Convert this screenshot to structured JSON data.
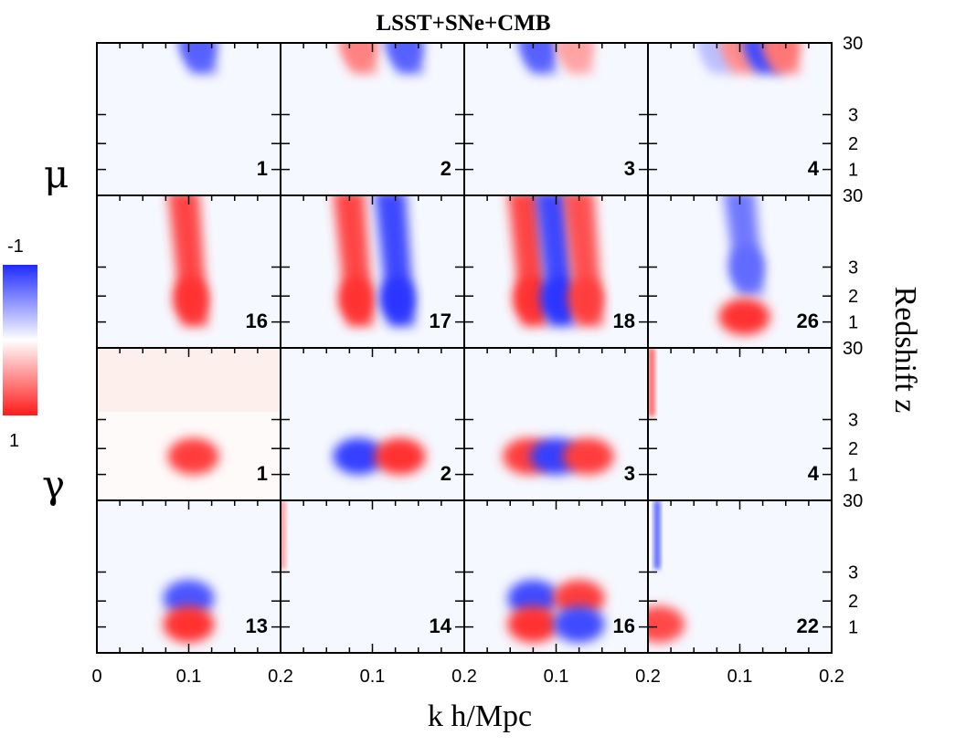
{
  "chart_data": {
    "type": "heatmap",
    "title": "LSST+SNe+CMB",
    "xlabel": "k h/Mpc",
    "ylabel": "Redshift z",
    "row_group_labels": [
      "μ",
      "γ"
    ],
    "x_tick_labels": [
      "0",
      "0.1",
      "0.2",
      "0.1",
      "0.2",
      "0.1",
      "0.2",
      "0.1",
      "0.2"
    ],
    "y_tick_labels": [
      "30",
      "3",
      "2",
      "1"
    ],
    "xlim": [
      0,
      0.2
    ],
    "z_ticks": [
      30,
      3,
      2,
      1
    ],
    "colorbar": {
      "min_label": "-1",
      "max_label": "1",
      "range": [
        -1,
        1
      ],
      "low_color": "#1f2bff",
      "mid_color": "#ffffff",
      "high_color": "#ff1a1a"
    },
    "panels": [
      {
        "group": "mu",
        "mode": "1",
        "blobs": [
          {
            "k": 0.11,
            "z": 30,
            "amp": -0.75,
            "type": "band"
          }
        ]
      },
      {
        "group": "mu",
        "mode": "2",
        "blobs": [
          {
            "k": 0.085,
            "z": 30,
            "amp": 0.55,
            "type": "band"
          },
          {
            "k": 0.135,
            "z": 30,
            "amp": -0.75,
            "type": "band"
          }
        ]
      },
      {
        "group": "mu",
        "mode": "3",
        "blobs": [
          {
            "k": 0.08,
            "z": 30,
            "amp": -0.75,
            "type": "band"
          },
          {
            "k": 0.12,
            "z": 30,
            "amp": 0.4,
            "type": "band"
          }
        ]
      },
      {
        "group": "mu",
        "mode": "4",
        "blobs": [
          {
            "k": 0.075,
            "z": 30,
            "amp": -0.3,
            "type": "band"
          },
          {
            "k": 0.1,
            "z": 30,
            "amp": 0.5,
            "type": "band"
          },
          {
            "k": 0.125,
            "z": 30,
            "amp": -0.85,
            "type": "band"
          },
          {
            "k": 0.145,
            "z": 30,
            "amp": 0.6,
            "type": "band"
          }
        ]
      },
      {
        "group": "mu",
        "mode": "16",
        "blobs": [
          {
            "k": 0.1,
            "z": 1.9,
            "amp": 0.9,
            "type": "band"
          }
        ]
      },
      {
        "group": "mu",
        "mode": "17",
        "blobs": [
          {
            "k": 0.08,
            "z": 1.9,
            "amp": 0.9,
            "type": "band"
          },
          {
            "k": 0.125,
            "z": 1.9,
            "amp": -0.95,
            "type": "band"
          }
        ]
      },
      {
        "group": "mu",
        "mode": "18",
        "blobs": [
          {
            "k": 0.07,
            "z": 1.9,
            "amp": 0.9,
            "type": "band"
          },
          {
            "k": 0.1,
            "z": 1.9,
            "amp": -0.95,
            "type": "band"
          },
          {
            "k": 0.13,
            "z": 1.9,
            "amp": 0.85,
            "type": "band"
          }
        ]
      },
      {
        "group": "mu",
        "mode": "26",
        "blobs": [
          {
            "k": 0.105,
            "z": 3,
            "amp": -0.7,
            "type": "band"
          },
          {
            "k": 0.105,
            "z": 1.2,
            "amp": 0.9,
            "type": "blob"
          }
        ]
      },
      {
        "group": "gamma",
        "mode": "1",
        "blobs": [
          {
            "k": 0.105,
            "z": 1.7,
            "amp": 0.85,
            "type": "blob"
          }
        ]
      },
      {
        "group": "gamma",
        "mode": "2",
        "blobs": [
          {
            "k": 0.085,
            "z": 1.7,
            "amp": -0.9,
            "type": "blob"
          },
          {
            "k": 0.13,
            "z": 1.7,
            "amp": 0.9,
            "type": "blob"
          }
        ]
      },
      {
        "group": "gamma",
        "mode": "3",
        "blobs": [
          {
            "k": 0.07,
            "z": 1.7,
            "amp": 0.85,
            "type": "blob"
          },
          {
            "k": 0.1,
            "z": 1.7,
            "amp": -0.9,
            "type": "blob"
          },
          {
            "k": 0.135,
            "z": 1.7,
            "amp": 0.85,
            "type": "blob"
          }
        ]
      },
      {
        "group": "gamma",
        "mode": "4",
        "blobs": [
          {
            "k": 0.004,
            "z": 30,
            "amp": 0.8,
            "type": "stripe"
          }
        ]
      },
      {
        "group": "gamma",
        "mode": "13",
        "blobs": [
          {
            "k": 0.1,
            "z": 2.1,
            "amp": -0.8,
            "type": "blob"
          },
          {
            "k": 0.1,
            "z": 1.1,
            "amp": 0.9,
            "type": "blob"
          }
        ]
      },
      {
        "group": "gamma",
        "mode": "14",
        "blobs": [
          {
            "k": 0.002,
            "z": 30,
            "amp": 0.5,
            "type": "stripe"
          }
        ]
      },
      {
        "group": "gamma",
        "mode": "16",
        "blobs": [
          {
            "k": 0.075,
            "z": 2.1,
            "amp": -0.85,
            "type": "blob"
          },
          {
            "k": 0.125,
            "z": 2.1,
            "amp": 0.85,
            "type": "blob"
          },
          {
            "k": 0.075,
            "z": 1.1,
            "amp": 0.9,
            "type": "blob"
          },
          {
            "k": 0.125,
            "z": 1.1,
            "amp": -0.85,
            "type": "blob"
          }
        ]
      },
      {
        "group": "gamma",
        "mode": "22",
        "blobs": [
          {
            "k": 0.01,
            "z": 30,
            "amp": -0.85,
            "type": "stripe"
          },
          {
            "k": 0.012,
            "z": 1.1,
            "amp": 0.8,
            "type": "blob"
          }
        ]
      }
    ]
  }
}
